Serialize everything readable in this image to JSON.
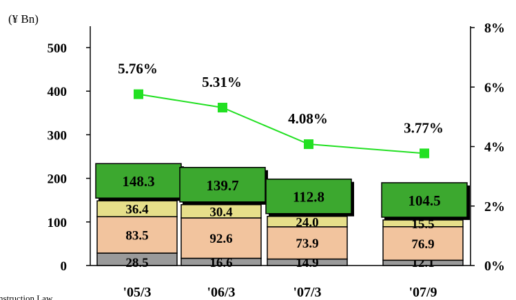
{
  "chart_data": {
    "type": "bar",
    "stacked": true,
    "unit_label": "(¥ Bn)",
    "categories": [
      "'05/3",
      "'06/3",
      "'07/3",
      "'07/9"
    ],
    "series": [
      {
        "values": [
          28.5,
          16.6,
          14.9,
          12.1
        ],
        "color": "#9a9a9a"
      },
      {
        "values": [
          83.5,
          92.6,
          73.9,
          76.9
        ],
        "color": "#f2c49e"
      },
      {
        "values": [
          36.4,
          30.4,
          24.0,
          15.5
        ],
        "color": "#e6df8a"
      }
    ],
    "totals_box": {
      "values": [
        148.3,
        139.7,
        112.8,
        104.5
      ],
      "color": "#3ca82f"
    },
    "line": {
      "values": [
        5.76,
        5.31,
        4.08,
        3.77
      ],
      "labels": [
        "5.76%",
        "5.31%",
        "4.08%",
        "3.77%"
      ],
      "color": "#22e022"
    },
    "y_left": {
      "min": 0,
      "max": 500,
      "ticks": [
        0,
        100,
        200,
        300,
        400,
        500
      ]
    },
    "y_right": {
      "min": 0,
      "max": 8,
      "ticks": [
        "0%",
        "2%",
        "4%",
        "6%",
        "8%"
      ]
    },
    "footnote": "nstruction Law"
  }
}
